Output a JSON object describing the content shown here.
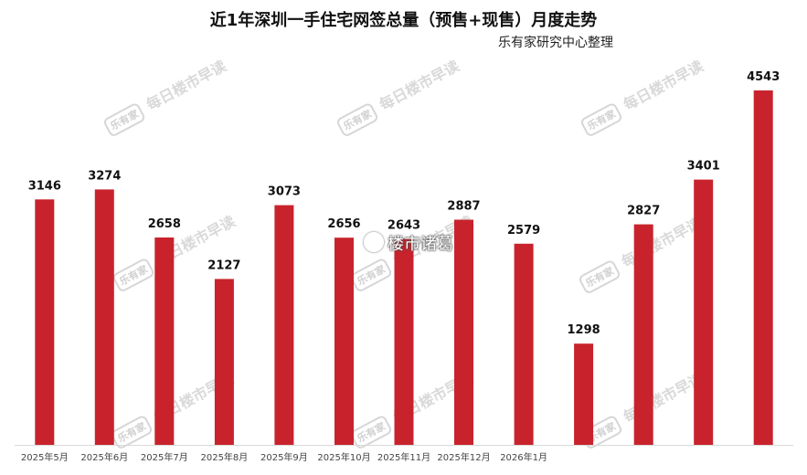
{
  "chart_data": {
    "type": "bar",
    "title": "近1年深圳一手住宅网签总量（预售+现售）月度走势",
    "subtitle": "乐有家研究中心整理",
    "categories": [
      "2025年5月",
      "2025年6月",
      "2025年7月",
      "2025年8月",
      "2025年9月",
      "2025年10月",
      "2025年11月",
      "2025年12月",
      "2026年1月",
      "",
      "",
      "",
      ""
    ],
    "values": [
      3146,
      3274,
      2658,
      2127,
      3073,
      2656,
      2643,
      2887,
      2579,
      1298,
      2827,
      3401,
      4543
    ],
    "ylim": [
      0,
      5000
    ],
    "grid": false,
    "bar_color": "#c8232c"
  },
  "watermarks": {
    "logo": "乐有家",
    "text": "每日楼市早读"
  },
  "overlay_mark": "楼市诸葛"
}
